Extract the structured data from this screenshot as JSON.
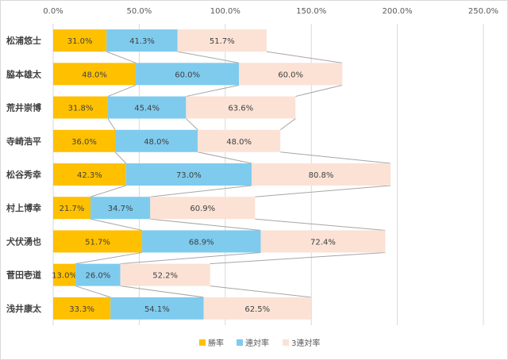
{
  "chart_data": {
    "type": "bar",
    "stacked": true,
    "orientation": "horizontal",
    "categories": [
      "松浦悠士",
      "脇本雄太",
      "荒井崇博",
      "寺崎浩平",
      "松谷秀幸",
      "村上博幸",
      "犬伏湧也",
      "菅田壱道",
      "浅井康太"
    ],
    "series": [
      {
        "name": "勝率",
        "color": "#ffc000",
        "values": [
          31.0,
          48.0,
          31.8,
          36.0,
          42.3,
          21.7,
          51.7,
          13.0,
          33.3
        ],
        "labels": [
          "31.0%",
          "48.0%",
          "31.8%",
          "36.0%",
          "42.3%",
          "21.7%",
          "51.7%",
          "13.0%",
          "33.3%"
        ]
      },
      {
        "name": "連対率",
        "color": "#7ecbee",
        "values": [
          41.3,
          60.0,
          45.4,
          48.0,
          73.0,
          34.7,
          68.9,
          26.0,
          54.1
        ],
        "labels": [
          "41.3%",
          "60.0%",
          "45.4%",
          "48.0%",
          "73.0%",
          "34.7%",
          "68.9%",
          "26.0%",
          "54.1%"
        ]
      },
      {
        "name": "3連対率",
        "color": "#fbe2d5",
        "values": [
          51.7,
          60.0,
          63.6,
          48.0,
          80.8,
          60.9,
          72.4,
          52.2,
          62.5
        ],
        "labels": [
          "51.7%",
          "60.0%",
          "63.6%",
          "48.0%",
          "80.8%",
          "60.9%",
          "72.4%",
          "52.2%",
          "62.5%"
        ]
      }
    ],
    "xlim": [
      0,
      250
    ],
    "xticks": [
      "0.0%",
      "50.0%",
      "100.0%",
      "150.0%",
      "200.0%",
      "250.0%"
    ],
    "title": "",
    "xlabel": "",
    "ylabel": "",
    "grid": true,
    "legend_position": "bottom",
    "series_lines": true
  }
}
